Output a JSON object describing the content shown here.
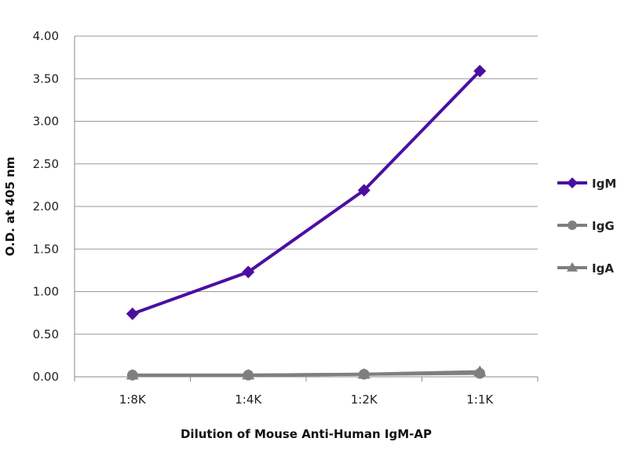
{
  "chart_data": {
    "type": "line",
    "title": "",
    "xlabel": "Dilution of Mouse Anti-Human IgM-AP",
    "ylabel": "O.D. at 405 nm",
    "categories": [
      "1:8K",
      "1:4K",
      "1:2K",
      "1:1K"
    ],
    "ylim": [
      0,
      4
    ],
    "yticks": [
      "0.00",
      "0.50",
      "1.00",
      "1.50",
      "2.00",
      "2.50",
      "3.00",
      "3.50",
      "4.00"
    ],
    "grid": true,
    "legend_position": "right",
    "series": [
      {
        "name": "IgM",
        "values": [
          0.74,
          1.23,
          2.19,
          3.59
        ],
        "color": "#4b0fa0",
        "marker": "diamond"
      },
      {
        "name": "IgG",
        "values": [
          0.02,
          0.02,
          0.03,
          0.04
        ],
        "color": "#7f7f7f",
        "marker": "circle"
      },
      {
        "name": "IgA",
        "values": [
          0.02,
          0.02,
          0.03,
          0.06
        ],
        "color": "#7f7f7f",
        "marker": "triangle"
      }
    ]
  }
}
